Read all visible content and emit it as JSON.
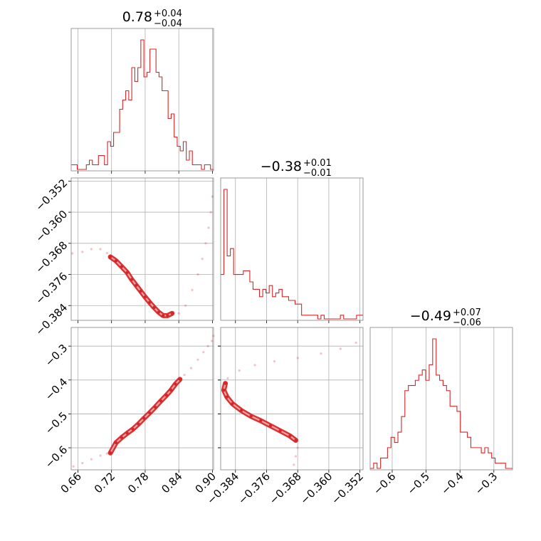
{
  "chart_data": {
    "type": "corner",
    "line_color": "#d62728",
    "grid_color": "#b0b0b0",
    "titles": [
      {
        "center": "0.78",
        "plus": "+0.04",
        "minus": "−0.04"
      },
      {
        "center": "−0.38",
        "plus": "+0.01",
        "minus": "−0.01"
      },
      {
        "center": "−0.49",
        "plus": "+0.07",
        "minus": "−0.06"
      }
    ],
    "params": [
      {
        "range": [
          0.648,
          0.902
        ],
        "ticks": [
          0.66,
          0.72,
          0.78,
          0.84,
          0.9
        ],
        "tick_labels": [
          "0.66",
          "0.72",
          "0.78",
          "0.84",
          "0.90"
        ]
      },
      {
        "range": [
          -0.3878,
          -0.3512
        ],
        "ticks": [
          -0.384,
          -0.376,
          -0.368,
          -0.36,
          -0.352
        ],
        "tick_labels": [
          "−0.384",
          "−0.376",
          "−0.368",
          "−0.360",
          "−0.352"
        ]
      },
      {
        "range": [
          -0.665,
          -0.245
        ],
        "ticks": [
          -0.6,
          -0.5,
          -0.4,
          -0.3
        ],
        "tick_labels": [
          "−0.6",
          "−0.5",
          "−0.4",
          "−0.3"
        ]
      }
    ],
    "histograms": [
      {
        "bin_edges": [
          0.648,
          0.902
        ],
        "counts": [
          1,
          1,
          0,
          0,
          0,
          1,
          2,
          1,
          1,
          3,
          3,
          1,
          6,
          5,
          8,
          8,
          13,
          15,
          17,
          15,
          22,
          19,
          22,
          28,
          20,
          21,
          26,
          26,
          21,
          20,
          17,
          17,
          11,
          12,
          7,
          5,
          4,
          6,
          2,
          4,
          1,
          1,
          1,
          0,
          1,
          1,
          0
        ]
      },
      {
        "bin_edges": [
          -0.3878,
          -0.3512
        ],
        "counts": [
          12,
          35,
          17,
          19,
          12,
          12,
          12,
          13,
          13,
          10,
          8,
          8,
          6,
          8,
          7,
          9,
          6,
          7,
          8,
          6,
          6,
          5,
          5,
          4,
          4,
          1,
          1,
          1,
          1,
          1,
          0,
          1,
          0,
          0,
          0,
          0,
          0,
          1,
          0,
          0,
          0,
          0,
          1,
          1
        ]
      },
      {
        "bin_edges": [
          -0.665,
          -0.245
        ],
        "counts": [
          0,
          1,
          0,
          2,
          2,
          4,
          6,
          5,
          7,
          10,
          15,
          16,
          16,
          17,
          18,
          19,
          17,
          20,
          25,
          18,
          17,
          16,
          15,
          12,
          12,
          11,
          7,
          7,
          6,
          4,
          4,
          4,
          3,
          4,
          3,
          2,
          1,
          1,
          1,
          0,
          0
        ]
      }
    ],
    "pairs": [
      {
        "row": 1,
        "col": 0,
        "core": [
          [
            0.718,
            -0.3715
          ],
          [
            0.728,
            -0.3725
          ],
          [
            0.738,
            -0.374
          ],
          [
            0.748,
            -0.3755
          ],
          [
            0.756,
            -0.3773
          ],
          [
            0.764,
            -0.3788
          ],
          [
            0.772,
            -0.3803
          ],
          [
            0.78,
            -0.3818
          ],
          [
            0.788,
            -0.3832
          ],
          [
            0.796,
            -0.3845
          ],
          [
            0.804,
            -0.3857
          ],
          [
            0.812,
            -0.3866
          ],
          [
            0.82,
            -0.3866
          ],
          [
            0.828,
            -0.386
          ]
        ],
        "faint": [
          [
            0.65,
            -0.3706
          ],
          [
            0.668,
            -0.3702
          ],
          [
            0.684,
            -0.3695
          ],
          [
            0.7,
            -0.3695
          ],
          [
            0.712,
            -0.3705
          ],
          [
            0.84,
            -0.386
          ],
          [
            0.852,
            -0.384
          ],
          [
            0.864,
            -0.38
          ],
          [
            0.874,
            -0.376
          ],
          [
            0.882,
            -0.372
          ],
          [
            0.888,
            -0.368
          ],
          [
            0.893,
            -0.364
          ],
          [
            0.897,
            -0.36
          ],
          [
            0.9,
            -0.356
          ]
        ]
      },
      {
        "row": 2,
        "col": 0,
        "core": [
          [
            0.718,
            -0.615
          ],
          [
            0.728,
            -0.585
          ],
          [
            0.738,
            -0.57
          ],
          [
            0.748,
            -0.557
          ],
          [
            0.758,
            -0.545
          ],
          [
            0.768,
            -0.53
          ],
          [
            0.778,
            -0.513
          ],
          [
            0.788,
            -0.497
          ],
          [
            0.798,
            -0.48
          ],
          [
            0.808,
            -0.462
          ],
          [
            0.818,
            -0.445
          ],
          [
            0.826,
            -0.43
          ],
          [
            0.834,
            -0.412
          ],
          [
            0.842,
            -0.398
          ]
        ],
        "faint": [
          [
            0.652,
            -0.655
          ],
          [
            0.668,
            -0.645
          ],
          [
            0.684,
            -0.634
          ],
          [
            0.7,
            -0.623
          ],
          [
            0.712,
            -0.617
          ],
          [
            0.85,
            -0.385
          ],
          [
            0.862,
            -0.365
          ],
          [
            0.874,
            -0.34
          ],
          [
            0.884,
            -0.318
          ],
          [
            0.892,
            -0.3
          ],
          [
            0.899,
            -0.285
          ],
          [
            0.902,
            -0.27
          ]
        ]
      },
      {
        "row": 2,
        "col": 1,
        "core": [
          [
            -0.3866,
            -0.41
          ],
          [
            -0.387,
            -0.43
          ],
          [
            -0.3862,
            -0.45
          ],
          [
            -0.3848,
            -0.47
          ],
          [
            -0.3825,
            -0.49
          ],
          [
            -0.38,
            -0.507
          ],
          [
            -0.3775,
            -0.52
          ],
          [
            -0.375,
            -0.535
          ],
          [
            -0.3725,
            -0.55
          ],
          [
            -0.37,
            -0.565
          ],
          [
            -0.3685,
            -0.578
          ]
        ],
        "faint": [
          [
            -0.386,
            -0.395
          ],
          [
            -0.383,
            -0.372
          ],
          [
            -0.379,
            -0.356
          ],
          [
            -0.374,
            -0.345
          ],
          [
            -0.368,
            -0.335
          ],
          [
            -0.362,
            -0.322
          ],
          [
            -0.357,
            -0.308
          ],
          [
            -0.353,
            -0.29
          ],
          [
            -0.368,
            -0.6
          ],
          [
            -0.3685,
            -0.625
          ],
          [
            -0.369,
            -0.65
          ]
        ]
      }
    ]
  }
}
